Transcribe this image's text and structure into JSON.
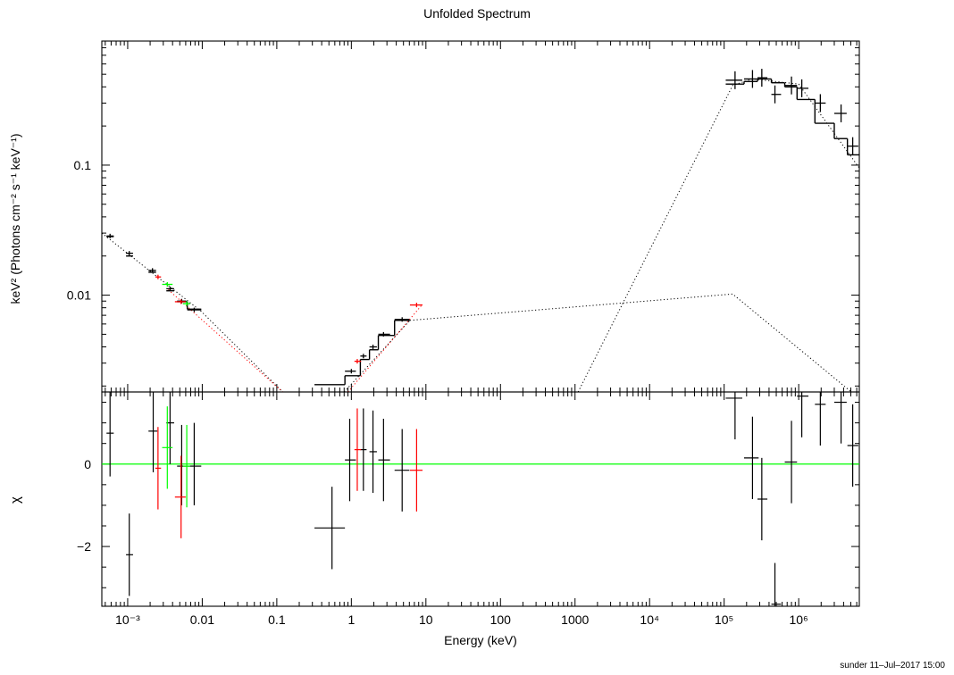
{
  "title": "Unfolded Spectrum",
  "footer": "sunder 11–Jul–2017 15:00",
  "colors": {
    "black": "#000000",
    "red": "#ff0000",
    "green": "#00ff00",
    "zero_line": "#00ff00"
  },
  "chart_data": [
    {
      "type": "scatter",
      "panel": "spectrum",
      "ylabel": "keV² (Photons cm⁻² s⁻¹ keV⁻¹)",
      "xscale": "log",
      "yscale": "log",
      "xlim": [
        0.00045,
        6500000
      ],
      "ylim": [
        0.0018,
        0.9
      ],
      "yticks": [
        {
          "v": 0.01,
          "label": "0.01"
        },
        {
          "v": 0.1,
          "label": "0.1"
        }
      ],
      "series": [
        {
          "color": "#000000",
          "points": [
            {
              "x": 0.00058,
              "x0": 0.00052,
              "x1": 0.00065,
              "y": 0.0285
            },
            {
              "x": 0.00105,
              "x0": 0.00095,
              "x1": 0.00118,
              "y": 0.021
            },
            {
              "x": 0.00215,
              "x0": 0.0019,
              "x1": 0.0024,
              "y": 0.0155
            },
            {
              "x": 0.0037,
              "x0": 0.0033,
              "x1": 0.0042,
              "y": 0.0112
            },
            {
              "x": 0.0053,
              "x0": 0.0046,
              "x1": 0.0061,
              "y": 0.009
            },
            {
              "x": 0.0078,
              "x0": 0.0063,
              "x1": 0.0097,
              "y": 0.0077
            },
            {
              "x": 1.0,
              "x0": 0.82,
              "x1": 1.15,
              "y": 0.0026
            },
            {
              "x": 1.45,
              "x0": 1.32,
              "x1": 1.6,
              "y": 0.0034
            },
            {
              "x": 1.95,
              "x0": 1.75,
              "x1": 2.2,
              "y": 0.004
            },
            {
              "x": 2.7,
              "x0": 2.3,
              "x1": 3.3,
              "y": 0.005
            },
            {
              "x": 4.8,
              "x0": 3.8,
              "x1": 6.0,
              "y": 0.0065
            },
            {
              "x": 140000,
              "x0": 105000,
              "x1": 175000,
              "y": 0.45
            },
            {
              "x": 240000,
              "x0": 185000,
              "x1": 290000,
              "y": 0.46
            },
            {
              "x": 320000,
              "x0": 280000,
              "x1": 380000,
              "y": 0.47
            },
            {
              "x": 480000,
              "x0": 430000,
              "x1": 580000,
              "y": 0.35
            },
            {
              "x": 800000,
              "x0": 650000,
              "x1": 950000,
              "y": 0.41
            },
            {
              "x": 1100000,
              "x0": 950000,
              "x1": 1350000,
              "y": 0.39
            },
            {
              "x": 1950000,
              "x0": 1650000,
              "x1": 2300000,
              "y": 0.3
            },
            {
              "x": 3700000,
              "x0": 3000000,
              "x1": 4400000,
              "y": 0.25
            },
            {
              "x": 5300000,
              "x0": 4500000,
              "x1": 6300000,
              "y": 0.14
            }
          ]
        },
        {
          "color": "#ff0000",
          "points": [
            {
              "x": 0.00255,
              "x0": 0.00235,
              "x1": 0.0028,
              "y": 0.0138
            },
            {
              "x": 0.0052,
              "x0": 0.0043,
              "x1": 0.006,
              "y": 0.0089
            },
            {
              "x": 1.2,
              "x0": 1.1,
              "x1": 1.35,
              "y": 0.0031
            },
            {
              "x": 7.5,
              "x0": 6.1,
              "x1": 9.0,
              "y": 0.0084
            }
          ]
        },
        {
          "color": "#00ff00",
          "points": [
            {
              "x": 0.0034,
              "x0": 0.0029,
              "x1": 0.004,
              "y": 0.0121
            },
            {
              "x": 0.0062,
              "x0": 0.0055,
              "x1": 0.0069,
              "y": 0.0086
            }
          ]
        }
      ],
      "model_histogram": [
        {
          "x0": 0.00052,
          "x1": 0.00065,
          "y": 0.0282
        },
        {
          "x0": 0.00095,
          "x1": 0.00118,
          "y": 0.02
        },
        {
          "x0": 0.0019,
          "x1": 0.0024,
          "y": 0.015
        },
        {
          "x0": 0.0033,
          "x1": 0.0042,
          "y": 0.0108
        },
        {
          "x0": 0.0046,
          "x1": 0.0063,
          "y": 0.0089
        },
        {
          "x0": 0.0063,
          "x1": 0.0097,
          "y": 0.0078
        },
        {
          "x0": 0.32,
          "x1": 0.82,
          "y": 0.00205
        },
        {
          "x0": 0.82,
          "x1": 1.32,
          "y": 0.0024
        },
        {
          "x0": 1.32,
          "x1": 1.75,
          "y": 0.0032
        },
        {
          "x0": 1.75,
          "x1": 2.3,
          "y": 0.0038
        },
        {
          "x0": 2.3,
          "x1": 3.8,
          "y": 0.0049
        },
        {
          "x0": 3.8,
          "x1": 6.1,
          "y": 0.0064
        },
        {
          "x0": 105000,
          "x1": 185000,
          "y": 0.42
        },
        {
          "x0": 185000,
          "x1": 280000,
          "y": 0.44
        },
        {
          "x0": 280000,
          "x1": 430000,
          "y": 0.46
        },
        {
          "x0": 430000,
          "x1": 650000,
          "y": 0.43
        },
        {
          "x0": 650000,
          "x1": 950000,
          "y": 0.4
        },
        {
          "x0": 950000,
          "x1": 1650000,
          "y": 0.32
        },
        {
          "x0": 1650000,
          "x1": 3000000,
          "y": 0.21
        },
        {
          "x0": 3000000,
          "x1": 4500000,
          "y": 0.16
        },
        {
          "x0": 4500000,
          "x1": 6500000,
          "y": 0.12
        }
      ],
      "model_components": [
        {
          "color": "#000000",
          "points": [
            [
              0.00045,
              0.03
            ],
            [
              0.0097,
              0.0075
            ],
            [
              0.12,
              0.0018
            ]
          ]
        },
        {
          "color": "#ff0000",
          "points": [
            [
              0.0035,
              0.011
            ],
            [
              0.12,
              0.0018
            ]
          ]
        },
        {
          "color": "#000000",
          "points": [
            [
              0.8,
              0.0018
            ],
            [
              6.1,
              0.0064
            ]
          ]
        },
        {
          "color": "#ff0000",
          "points": [
            [
              0.9,
              0.0018
            ],
            [
              9.0,
              0.0085
            ]
          ]
        },
        {
          "color": "#000000",
          "points": [
            [
              6.1,
              0.0064
            ],
            [
              130000,
              0.0102
            ],
            [
              6500000,
              0.0016
            ]
          ]
        },
        {
          "color": "#000000",
          "points": [
            [
              1100,
              0.0018
            ],
            [
              130000,
              0.41
            ],
            [
              240000,
              0.46
            ],
            [
              1000000,
              0.42
            ],
            [
              6500000,
              0.095
            ]
          ]
        }
      ]
    },
    {
      "type": "scatter",
      "panel": "residuals",
      "ylabel": "χ",
      "xlabel": "Energy (keV)",
      "xscale": "log",
      "xlim": [
        0.00045,
        6500000
      ],
      "ylim": [
        -3.45,
        1.75
      ],
      "yticks": [
        {
          "v": -2,
          "label": "−2"
        },
        {
          "v": 0,
          "label": "0"
        }
      ],
      "xticks": [
        {
          "v": 0.001,
          "label": "10⁻³"
        },
        {
          "v": 0.01,
          "label": "0.01"
        },
        {
          "v": 0.1,
          "label": "0.1"
        },
        {
          "v": 1,
          "label": "1"
        },
        {
          "v": 10,
          "label": "10"
        },
        {
          "v": 100,
          "label": "100"
        },
        {
          "v": 1000,
          "label": "1000"
        },
        {
          "v": 10000,
          "label": "10⁴"
        },
        {
          "v": 100000,
          "label": "10⁵"
        },
        {
          "v": 1000000,
          "label": "10⁶"
        }
      ],
      "zero_line": 0,
      "series": [
        {
          "color": "#000000",
          "points": [
            {
              "x": 0.00058,
              "x0": 0.00052,
              "x1": 0.00065,
              "y": 0.75,
              "y0": -0.3,
              "y1": 1.75
            },
            {
              "x": 0.00105,
              "x0": 0.00095,
              "x1": 0.00118,
              "y": -2.2,
              "y0": -3.2,
              "y1": -1.2
            },
            {
              "x": 0.0022,
              "x0": 0.0019,
              "x1": 0.0025,
              "y": 0.8,
              "y0": -0.2,
              "y1": 1.75
            },
            {
              "x": 0.0037,
              "x0": 0.0033,
              "x1": 0.0042,
              "y": 1.0,
              "y0": 0.0,
              "y1": 1.75
            },
            {
              "x": 0.0053,
              "x0": 0.0046,
              "x1": 0.0061,
              "y": -0.05,
              "y0": -1.0,
              "y1": 0.95
            },
            {
              "x": 0.0078,
              "x0": 0.0063,
              "x1": 0.0097,
              "y": -0.05,
              "y0": -1.0,
              "y1": 1.0
            },
            {
              "x": 0.55,
              "x0": 0.32,
              "x1": 0.82,
              "y": -1.55,
              "y0": -2.55,
              "y1": -0.55
            },
            {
              "x": 0.95,
              "x0": 0.82,
              "x1": 1.15,
              "y": 0.1,
              "y0": -0.9,
              "y1": 1.1
            },
            {
              "x": 1.45,
              "x0": 1.32,
              "x1": 1.6,
              "y": 0.35,
              "y0": -0.65,
              "y1": 1.35
            },
            {
              "x": 1.95,
              "x0": 1.75,
              "x1": 2.2,
              "y": 0.3,
              "y0": -0.7,
              "y1": 1.3
            },
            {
              "x": 2.7,
              "x0": 2.3,
              "x1": 3.3,
              "y": 0.1,
              "y0": -0.9,
              "y1": 1.1
            },
            {
              "x": 4.8,
              "x0": 3.8,
              "x1": 6.0,
              "y": -0.15,
              "y0": -1.15,
              "y1": 0.85
            },
            {
              "x": 140000,
              "x0": 105000,
              "x1": 175000,
              "y": 1.6,
              "y0": 0.6,
              "y1": 1.75
            },
            {
              "x": 240000,
              "x0": 185000,
              "x1": 290000,
              "y": 0.15,
              "y0": -0.85,
              "y1": 1.15
            },
            {
              "x": 320000,
              "x0": 280000,
              "x1": 380000,
              "y": -0.85,
              "y0": -1.85,
              "y1": 0.15
            },
            {
              "x": 480000,
              "x0": 430000,
              "x1": 580000,
              "y": -3.4,
              "y0": -3.45,
              "y1": -2.4
            },
            {
              "x": 800000,
              "x0": 650000,
              "x1": 950000,
              "y": 0.05,
              "y0": -0.95,
              "y1": 1.05
            },
            {
              "x": 1100000,
              "x0": 950000,
              "x1": 1350000,
              "y": 1.65,
              "y0": 0.65,
              "y1": 1.75
            },
            {
              "x": 1950000,
              "x0": 1650000,
              "x1": 2300000,
              "y": 1.45,
              "y0": 0.45,
              "y1": 1.75
            },
            {
              "x": 3700000,
              "x0": 3000000,
              "x1": 4400000,
              "y": 1.5,
              "y0": 0.5,
              "y1": 1.75
            },
            {
              "x": 5300000,
              "x0": 4500000,
              "x1": 6300000,
              "y": 0.45,
              "y0": -0.55,
              "y1": 1.45
            }
          ]
        },
        {
          "color": "#ff0000",
          "points": [
            {
              "x": 0.00255,
              "x0": 0.00235,
              "x1": 0.0028,
              "y": -0.1,
              "y0": -1.1,
              "y1": 0.9
            },
            {
              "x": 0.0052,
              "x0": 0.0043,
              "x1": 0.006,
              "y": -0.8,
              "y0": -1.8,
              "y1": 0.2
            },
            {
              "x": 1.2,
              "x0": 1.1,
              "x1": 1.35,
              "y": 0.35,
              "y0": -0.65,
              "y1": 1.35
            },
            {
              "x": 7.5,
              "x0": 6.1,
              "x1": 9.0,
              "y": -0.15,
              "y0": -1.15,
              "y1": 0.85
            }
          ]
        },
        {
          "color": "#00ff00",
          "points": [
            {
              "x": 0.0034,
              "x0": 0.0029,
              "x1": 0.004,
              "y": 0.4,
              "y0": -0.6,
              "y1": 1.4
            },
            {
              "x": 0.0062,
              "x0": 0.0055,
              "x1": 0.0069,
              "y": -0.05,
              "y0": -1.05,
              "y1": 0.95
            }
          ]
        }
      ]
    }
  ]
}
